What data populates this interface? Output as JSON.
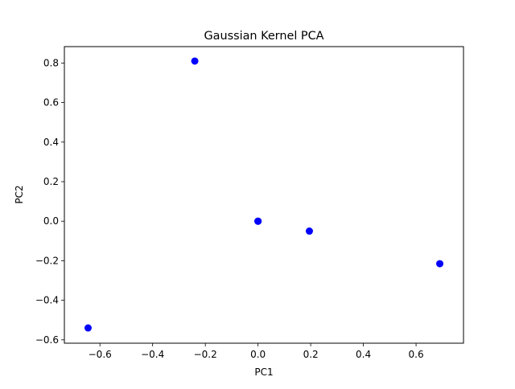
{
  "chart_data": {
    "type": "scatter",
    "title": "Gaussian Kernel PCA",
    "xlabel": "PC1",
    "ylabel": "PC2",
    "xlim": [
      -0.735,
      0.78
    ],
    "ylim": [
      -0.617,
      0.883
    ],
    "xticks": [
      -0.6,
      -0.4,
      -0.2,
      0.0,
      0.2,
      0.4,
      0.6
    ],
    "xtick_labels": [
      "−0.6",
      "−0.4",
      "−0.2",
      "0.0",
      "0.2",
      "0.4",
      "0.6"
    ],
    "yticks": [
      -0.6,
      -0.4,
      -0.2,
      0.0,
      0.2,
      0.4,
      0.6,
      0.8
    ],
    "ytick_labels": [
      "−0.6",
      "−0.4",
      "−0.2",
      "0.0",
      "0.2",
      "0.4",
      "0.6",
      "0.8"
    ],
    "grid": false,
    "marker_color": "#0000ff",
    "points": [
      {
        "x": -0.24,
        "y": 0.81
      },
      {
        "x": 0.0,
        "y": 0.0
      },
      {
        "x": 0.0,
        "y": 0.0
      },
      {
        "x": 0.0,
        "y": 0.0
      },
      {
        "x": 0.195,
        "y": -0.05
      },
      {
        "x": 0.69,
        "y": -0.215
      },
      {
        "x": -0.645,
        "y": -0.54
      }
    ]
  }
}
